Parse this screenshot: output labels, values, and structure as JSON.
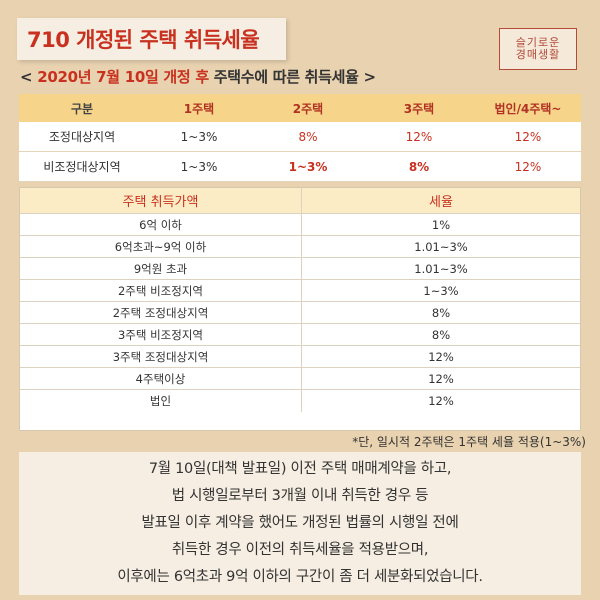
{
  "title": "710 개정된 주택 취득세율",
  "logo": {
    "line1": "슬기로운",
    "line2": "경매생활"
  },
  "subtitle": {
    "prefix": "< ",
    "highlight": "2020년 7월 10일 개정 후",
    "rest": " 주택수에 따른 취득세율 >"
  },
  "table1": {
    "headers": [
      "구분",
      "1주택",
      "2주택",
      "3주택",
      "법인/4주택~"
    ],
    "rows": [
      {
        "label": "조정대상지역",
        "values": [
          "1~3%",
          "8%",
          "12%",
          "12%"
        ]
      },
      {
        "label": "비조정대상지역",
        "values": [
          "1~3%",
          "1~3%",
          "8%",
          "12%"
        ]
      }
    ]
  },
  "table2": {
    "headers": [
      "주택 취득가액",
      "세율"
    ],
    "rows": [
      [
        "6억 이하",
        "1%"
      ],
      [
        "6억초과~9억 이하",
        "1.01~3%"
      ],
      [
        "9억원 초과",
        "1.01~3%"
      ],
      [
        "2주택 비조정지역",
        "1~3%"
      ],
      [
        "2주택 조정대상지역",
        "8%"
      ],
      [
        "3주택 비조정지역",
        "8%"
      ],
      [
        "3주택 조정대상지역",
        "12%"
      ],
      [
        "4주택이상",
        "12%"
      ],
      [
        "법인",
        "12%"
      ]
    ]
  },
  "footnote": "*단, 일시적 2주택은 1주택 세율 적용(1~3%)",
  "bottom_text": [
    "7월 10일(대책 발표일) 이전 주택 매매계약을 하고,",
    "법 시행일로부터 3개월 이내 취득한 경우 등",
    "발표일 이후 계약을 했어도 개정된 법률의 시행일 전에",
    "취득한 경우 이전의 취득세율을 적용받으며,",
    "이후에는 6억초과 9억 이하의 구간이 좀 더 세분화되었습니다."
  ]
}
